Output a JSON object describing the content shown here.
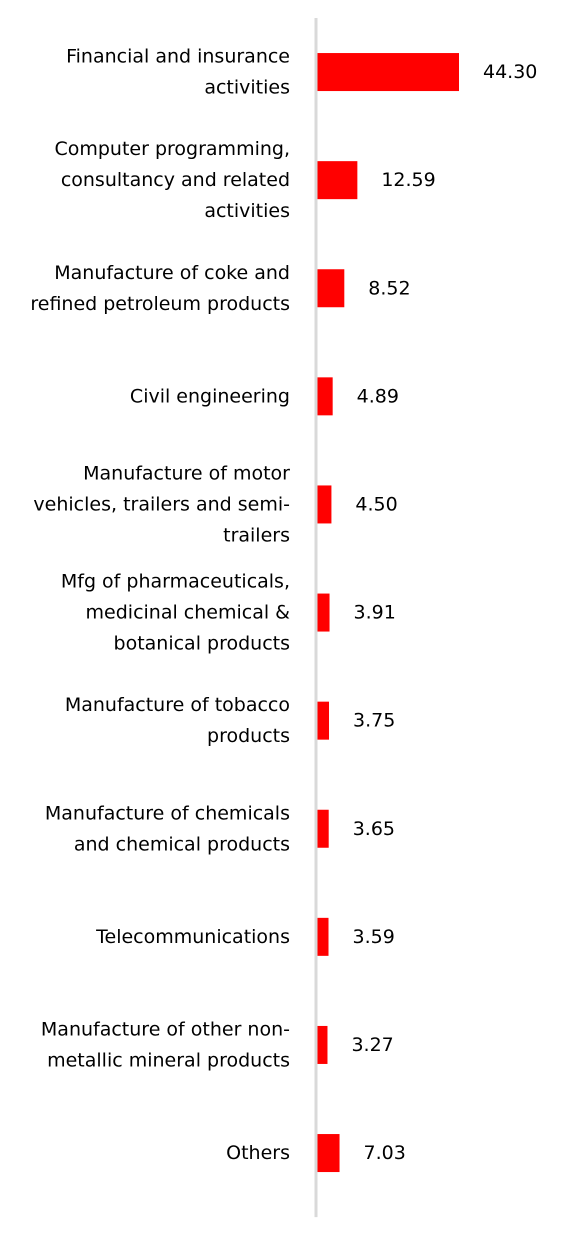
{
  "chart_data": {
    "type": "bar",
    "orientation": "horizontal",
    "categories": [
      [
        "Financial and insurance",
        "activities"
      ],
      [
        "Computer programming,",
        "consultancy and related",
        "activities"
      ],
      [
        "Manufacture of coke and",
        "refined petroleum products"
      ],
      [
        "Civil engineering"
      ],
      [
        "Manufacture of motor",
        "vehicles, trailers and semi-",
        "trailers"
      ],
      [
        "Mfg of pharmaceuticals,",
        "medicinal chemical &",
        "botanical products"
      ],
      [
        "Manufacture of tobacco",
        "products"
      ],
      [
        "Manufacture of chemicals",
        "and chemical products"
      ],
      [
        "Telecommunications"
      ],
      [
        "Manufacture of other non-",
        "metallic mineral products"
      ],
      [
        "Others"
      ]
    ],
    "values": [
      44.3,
      12.59,
      8.52,
      4.89,
      4.5,
      3.91,
      3.75,
      3.65,
      3.59,
      3.27,
      7.03
    ],
    "value_labels": [
      "44.30",
      "12.59",
      "8.52",
      "4.89",
      "4.50",
      "3.91",
      "3.75",
      "3.65",
      "3.59",
      "3.27",
      "7.03"
    ],
    "title": "",
    "xlabel": "",
    "ylabel": "",
    "xlim": [
      0,
      46
    ],
    "grid": false,
    "legend": "none",
    "bar_color": "#ff0000",
    "axis_color": "#d9d9d9"
  }
}
